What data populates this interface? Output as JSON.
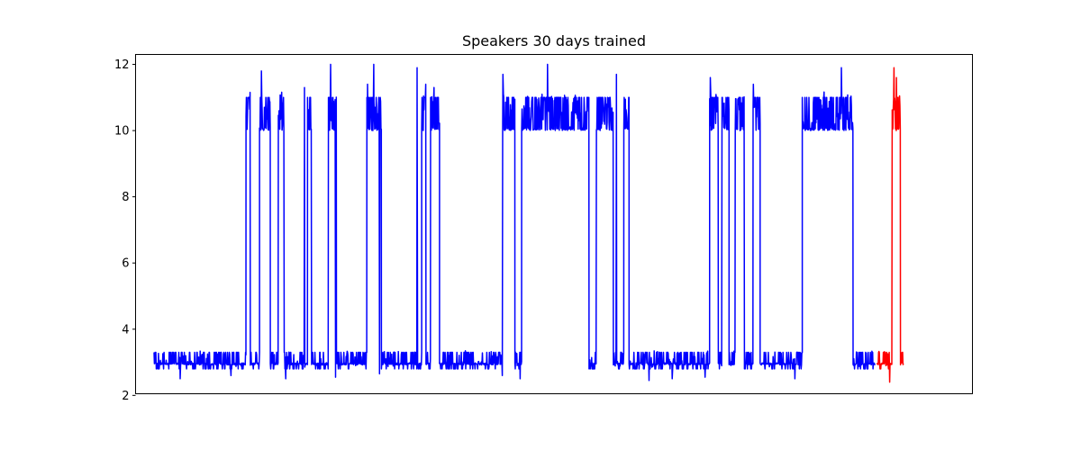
{
  "chart_data": {
    "type": "line",
    "title": "Speakers 30 days trained",
    "xlabel": "",
    "ylabel": "",
    "x_ticks_visible": false,
    "xlim": [
      -6,
      266
    ],
    "ylim": [
      2.05,
      12.3
    ],
    "yticks": [
      2,
      4,
      6,
      8,
      10,
      12
    ],
    "grid": false,
    "colors": {
      "train": "#0000ff",
      "test": "#ff0000",
      "axis": "#000000"
    },
    "series": [
      {
        "color": "#0000ff",
        "segments": [
          [
            0,
            29.9,
            "low"
          ],
          [
            29.9,
            31.3,
            "high"
          ],
          [
            31.3,
            34.3,
            "low"
          ],
          [
            34.3,
            37.8,
            "high"
          ],
          [
            37.8,
            40.4,
            "low"
          ],
          [
            40.4,
            42.3,
            "high"
          ],
          [
            42.3,
            49.9,
            "low"
          ],
          [
            49.9,
            51.2,
            "high"
          ],
          [
            51.2,
            56.7,
            "low"
          ],
          [
            56.7,
            59.3,
            "high"
          ],
          [
            59.3,
            69.2,
            "low"
          ],
          [
            69.2,
            73.9,
            "high"
          ],
          [
            73.9,
            87.0,
            "low"
          ],
          [
            87.0,
            88.4,
            "high"
          ],
          [
            88.4,
            89.9,
            "low"
          ],
          [
            89.9,
            92.8,
            "high"
          ],
          [
            92.8,
            113.3,
            "low"
          ],
          [
            113.3,
            117.3,
            "high"
          ],
          [
            117.3,
            119.5,
            "low"
          ],
          [
            119.5,
            141.4,
            "high"
          ],
          [
            141.4,
            143.8,
            "low"
          ],
          [
            143.8,
            149.3,
            "high"
          ],
          [
            149.3,
            152.7,
            "low"
          ],
          [
            152.7,
            154.4,
            "high"
          ],
          [
            154.4,
            180.6,
            "low"
          ],
          [
            180.6,
            183.4,
            "high"
          ],
          [
            183.4,
            184.6,
            "low"
          ],
          [
            184.6,
            186.9,
            "high"
          ],
          [
            186.9,
            188.9,
            "low"
          ],
          [
            188.9,
            191.9,
            "high"
          ],
          [
            191.9,
            194.7,
            "low"
          ],
          [
            194.7,
            197.0,
            "high"
          ],
          [
            197.0,
            210.7,
            "low"
          ],
          [
            210.7,
            227.2,
            "high"
          ],
          [
            227.2,
            234.4,
            "low"
          ]
        ],
        "peaks": [
          [
            34.9,
            11.8
          ],
          [
            48.9,
            11.3
          ],
          [
            57.4,
            12.0
          ],
          [
            69.4,
            11.4
          ],
          [
            71.4,
            12.0
          ],
          [
            85.5,
            11.9
          ],
          [
            88.3,
            11.4
          ],
          [
            91.0,
            11.3
          ],
          [
            113.4,
            11.7
          ],
          [
            127.9,
            12.0
          ],
          [
            150.3,
            11.7
          ],
          [
            180.8,
            11.6
          ],
          [
            194.8,
            11.4
          ],
          [
            223.4,
            11.9
          ]
        ],
        "dips": [
          [
            8.5,
            2.5
          ],
          [
            25.0,
            2.6
          ],
          [
            42.8,
            2.5
          ],
          [
            59.0,
            2.55
          ],
          [
            73.3,
            2.65
          ],
          [
            113.2,
            2.6
          ],
          [
            119.0,
            2.5
          ],
          [
            160.9,
            2.45
          ],
          [
            168.4,
            2.5
          ],
          [
            179.1,
            2.55
          ],
          [
            208.3,
            2.5
          ]
        ]
      },
      {
        "color": "#ff0000",
        "segments": [
          [
            235.0,
            239.9,
            "low"
          ],
          [
            239.9,
            242.6,
            "high"
          ],
          [
            242.6,
            243.6,
            "low"
          ]
        ],
        "peaks": [
          [
            240.5,
            11.9
          ],
          [
            241.3,
            11.6
          ]
        ],
        "dips": [
          [
            239.1,
            2.4
          ]
        ]
      }
    ]
  }
}
